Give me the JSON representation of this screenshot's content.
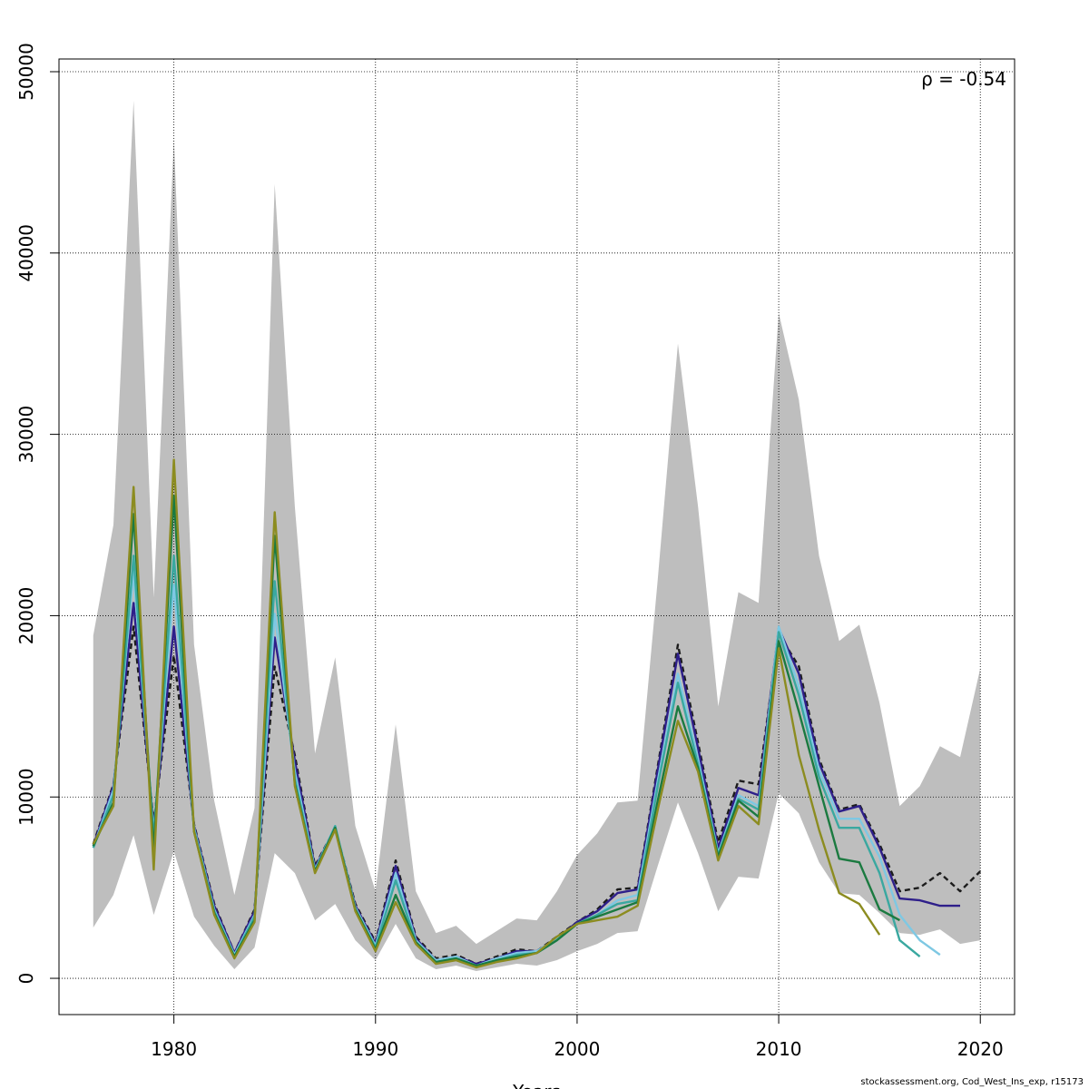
{
  "chart_data": {
    "type": "line",
    "title": "",
    "xlabel": "Years",
    "ylabel": "",
    "xlim": [
      1974.3,
      2021.7
    ],
    "ylim": [
      -2000,
      50700
    ],
    "x_ticks": [
      1980,
      1990,
      2000,
      2010,
      2020
    ],
    "y_ticks": [
      0,
      10000,
      20000,
      30000,
      40000,
      50000
    ],
    "grid": true,
    "annotation": "ρ = -0.54",
    "footer": "stockassessment.org, Cod_West_Ins_exp, r15173",
    "confidence_band": {
      "x": [
        1976,
        1977,
        1978,
        1979,
        1980,
        1981,
        1982,
        1983,
        1984,
        1985,
        1986,
        1987,
        1988,
        1989,
        1990,
        1991,
        1992,
        1993,
        1994,
        1995,
        1996,
        1997,
        1998,
        1999,
        2000,
        2001,
        2002,
        2003,
        2004,
        2005,
        2006,
        2007,
        2008,
        2009,
        2010,
        2011,
        2012,
        2013,
        2014,
        2015,
        2016,
        2017,
        2018,
        2019,
        2020
      ],
      "lower": [
        2800,
        4600,
        7900,
        3500,
        7000,
        3400,
        1800,
        500,
        1700,
        6900,
        5800,
        3200,
        4100,
        2100,
        1000,
        3000,
        1100,
        500,
        700,
        400,
        600,
        800,
        700,
        1000,
        1500,
        1900,
        2500,
        2600,
        6200,
        9700,
        6900,
        3700,
        5600,
        5500,
        10200,
        9100,
        6400,
        4700,
        4600,
        3600,
        2500,
        2400,
        2700,
        1900,
        2100
      ],
      "upper": [
        18900,
        25000,
        48400,
        21000,
        46300,
        18400,
        9800,
        4600,
        9400,
        43800,
        26000,
        12400,
        17700,
        8400,
        4800,
        14000,
        4800,
        2500,
        2900,
        1900,
        2600,
        3300,
        3200,
        4800,
        6800,
        8000,
        9700,
        9800,
        22000,
        35000,
        26000,
        15000,
        21300,
        20700,
        36700,
        31900,
        23300,
        18600,
        19500,
        15200,
        9500,
        10600,
        12800,
        12200,
        17100
      ]
    },
    "series": [
      {
        "color": "#1c1c1c",
        "dashed": true,
        "x": [
          1976,
          1977,
          1978,
          1979,
          1980,
          1981,
          1982,
          1983,
          1984,
          1985,
          1986,
          1987,
          1988,
          1989,
          1990,
          1991,
          1992,
          1993,
          1994,
          1995,
          1996,
          1997,
          1998,
          1999,
          2000,
          2001,
          2002,
          2003,
          2004,
          2005,
          2006,
          2007,
          2008,
          2009,
          2010,
          2011,
          2012,
          2013,
          2014,
          2015,
          2016,
          2017,
          2018,
          2019,
          2020
        ],
        "values": [
          7400,
          10700,
          19400,
          8600,
          17800,
          8500,
          4100,
          1400,
          3800,
          17200,
          12300,
          6200,
          8300,
          4100,
          2000,
          6500,
          2300,
          1100,
          1300,
          800,
          1200,
          1600,
          1500,
          2300,
          3100,
          3800,
          4900,
          5000,
          11700,
          18400,
          13000,
          7500,
          10900,
          10700,
          19000,
          17200,
          12100,
          9300,
          9600,
          7400,
          4800,
          5000,
          5800,
          4800,
          5900
        ]
      },
      {
        "color": "#2e1f8a",
        "dashed": false,
        "x": [
          1976,
          1977,
          1978,
          1979,
          1980,
          1981,
          1982,
          1983,
          1984,
          1985,
          1986,
          1987,
          1988,
          1989,
          1990,
          1991,
          1992,
          1993,
          1994,
          1995,
          1996,
          1997,
          1998,
          1999,
          2000,
          2001,
          2002,
          2003,
          2004,
          2005,
          2006,
          2007,
          2008,
          2009,
          2010,
          2011,
          2012,
          2013,
          2014,
          2015,
          2016,
          2017,
          2018,
          2019
        ],
        "values": [
          7300,
          10600,
          20700,
          8300,
          19400,
          8400,
          4000,
          1400,
          3700,
          18800,
          12000,
          6100,
          8300,
          4000,
          1900,
          6200,
          2200,
          1000,
          1200,
          800,
          1100,
          1500,
          1500,
          2200,
          3100,
          3700,
          4700,
          4900,
          11500,
          17900,
          12700,
          7200,
          10500,
          10100,
          19300,
          16800,
          11900,
          9200,
          9500,
          7200,
          4400,
          4300,
          4000,
          4000
        ]
      },
      {
        "color": "#7ec8e3",
        "dashed": false,
        "x": [
          1976,
          1977,
          1978,
          1979,
          1980,
          1981,
          1982,
          1983,
          1984,
          1985,
          1986,
          1987,
          1988,
          1989,
          1990,
          1991,
          1992,
          1993,
          1994,
          1995,
          1996,
          1997,
          1998,
          1999,
          2000,
          2001,
          2002,
          2003,
          2004,
          2005,
          2006,
          2007,
          2008,
          2009,
          2010,
          2011,
          2012,
          2013,
          2014,
          2015,
          2016,
          2017,
          2018
        ],
        "values": [
          7200,
          10400,
          22400,
          8000,
          21700,
          8300,
          3800,
          1300,
          3500,
          20100,
          11400,
          6000,
          8400,
          3900,
          1800,
          5800,
          2100,
          1000,
          1200,
          700,
          1100,
          1400,
          1500,
          2200,
          3000,
          3500,
          4300,
          4600,
          10900,
          16800,
          12100,
          6900,
          10100,
          9500,
          19400,
          16100,
          11500,
          8800,
          8800,
          6700,
          3500,
          2100,
          1300
        ]
      },
      {
        "color": "#3aa8a0",
        "dashed": false,
        "x": [
          1976,
          1977,
          1978,
          1979,
          1980,
          1981,
          1982,
          1983,
          1984,
          1985,
          1986,
          1987,
          1988,
          1989,
          1990,
          1991,
          1992,
          1993,
          1994,
          1995,
          1996,
          1997,
          1998,
          1999,
          2000,
          2001,
          2002,
          2003,
          2004,
          2005,
          2006,
          2007,
          2008,
          2009,
          2010,
          2011,
          2012,
          2013,
          2014,
          2015,
          2016,
          2017
        ],
        "values": [
          7200,
          10100,
          23300,
          7700,
          23300,
          8200,
          3700,
          1200,
          3400,
          21900,
          11000,
          5900,
          8400,
          3800,
          1700,
          5400,
          2000,
          900,
          1100,
          700,
          1000,
          1300,
          1400,
          2100,
          3000,
          3500,
          4100,
          4300,
          10600,
          16300,
          11800,
          6800,
          9900,
          9300,
          19100,
          15600,
          11100,
          8300,
          8300,
          5800,
          2100,
          1200
        ]
      },
      {
        "color": "#1b7a40",
        "dashed": false,
        "x": [
          1976,
          1977,
          1978,
          1979,
          1980,
          1981,
          1982,
          1983,
          1984,
          1985,
          1986,
          1987,
          1988,
          1989,
          1990,
          1991,
          1992,
          1993,
          1994,
          1995,
          1996,
          1997,
          1998,
          1999,
          2000,
          2001,
          2002,
          2003,
          2004,
          2005,
          2006,
          2007,
          2008,
          2009,
          2010,
          2011,
          2012,
          2013,
          2014,
          2015,
          2016
        ],
        "values": [
          7300,
          9700,
          25600,
          7000,
          26600,
          8100,
          3600,
          1200,
          3200,
          24400,
          10700,
          5900,
          8300,
          3800,
          1600,
          4600,
          2000,
          900,
          1100,
          700,
          1000,
          1200,
          1400,
          2100,
          3000,
          3400,
          3800,
          4200,
          9800,
          15000,
          11600,
          6700,
          9800,
          8900,
          18600,
          14700,
          10600,
          6600,
          6400,
          3800,
          3200
        ]
      },
      {
        "color": "#8c8c20",
        "dashed": false,
        "x": [
          1976,
          1977,
          1978,
          1979,
          1980,
          1981,
          1982,
          1983,
          1984,
          1985,
          1986,
          1987,
          1988,
          1989,
          1990,
          1991,
          1992,
          1993,
          1994,
          1995,
          1996,
          1997,
          1998,
          1999,
          2000,
          2001,
          2002,
          2003,
          2004,
          2005,
          2006,
          2007,
          2008,
          2009,
          2010,
          2011,
          2012,
          2013,
          2014,
          2015
        ],
        "values": [
          7400,
          9500,
          27100,
          6000,
          28600,
          8100,
          3500,
          1100,
          3100,
          25700,
          10600,
          5800,
          8200,
          3700,
          1500,
          4200,
          1900,
          800,
          1000,
          600,
          900,
          1100,
          1400,
          2300,
          3000,
          3200,
          3400,
          4000,
          9300,
          14200,
          11400,
          6500,
          9500,
          8500,
          18200,
          12300,
          8200,
          4700,
          4100,
          2400
        ]
      }
    ]
  }
}
